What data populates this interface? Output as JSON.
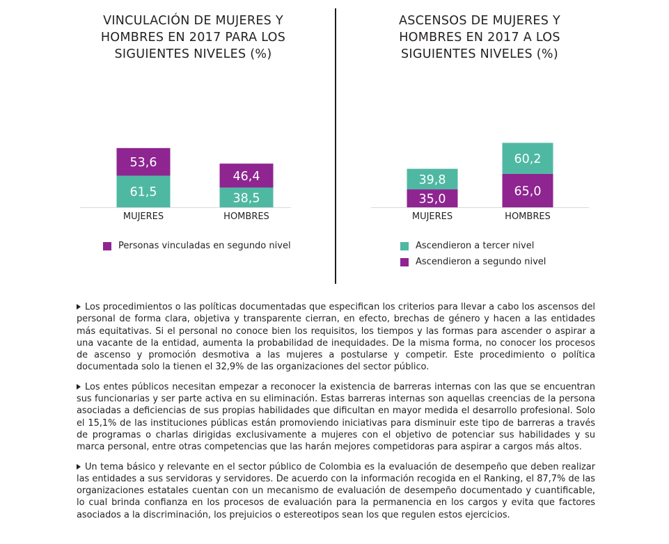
{
  "colors": {
    "magenta": "#8e2590",
    "teal": "#4fb8a2",
    "axis": "#d9d9d9"
  },
  "chart_data": [
    {
      "type": "bar",
      "stacked": true,
      "title": "VINCULACIÓN DE MUJERES Y HOMBRES EN 2017 PARA LOS SIGUIENTES NIVELES (%)",
      "categories": [
        "MUJERES",
        "HOMBRES"
      ],
      "series": [
        {
          "name": "",
          "values": [
            61.5,
            38.5
          ],
          "labels": [
            "61,5",
            "38,5"
          ],
          "color": "#4fb8a2"
        },
        {
          "name": "Personas vinculadas en segundo nivel",
          "values": [
            53.6,
            46.4
          ],
          "labels": [
            "53,6",
            "46,4"
          ],
          "color": "#8e2590"
        }
      ],
      "legend": [
        {
          "label": "Personas vinculadas en segundo nivel",
          "color": "#8e2590"
        }
      ],
      "legend_position": "bottom",
      "grid": false
    },
    {
      "type": "bar",
      "stacked": true,
      "title": "ASCENSOS DE MUJERES Y HOMBRES EN 2017 A LOS SIGUIENTES NIVELES (%)",
      "categories": [
        "MUJERES",
        "HOMBRES"
      ],
      "series": [
        {
          "name": "Ascendieron a segundo nivel",
          "values": [
            35.0,
            65.0
          ],
          "labels": [
            "35,0",
            "65,0"
          ],
          "color": "#8e2590"
        },
        {
          "name": "Ascendieron a tercer nivel",
          "values": [
            39.8,
            60.2
          ],
          "labels": [
            "39,8",
            "60,2"
          ],
          "color": "#4fb8a2"
        }
      ],
      "legend": [
        {
          "label": "Ascendieron a tercer nivel",
          "color": "#4fb8a2"
        },
        {
          "label": "Ascendieron a segundo nivel",
          "color": "#8e2590"
        }
      ],
      "legend_position": "bottom",
      "grid": false
    }
  ],
  "paragraphs": [
    "Los procedimientos o las políticas documentadas que especifican los criterios para llevar a cabo los ascensos del personal de forma clara, objetiva y transparente cierran, en efecto, brechas de género y hacen a las entidades más equitativas. Si el personal no conoce bien los requisitos, los tiempos y las formas para ascender o aspirar a una vacante de la entidad, aumenta la probabilidad de inequidades. De la misma forma, no conocer los procesos de ascenso y promoción desmotiva a las mujeres a postularse y competir. Este procedimiento o política documentada solo la tienen el 32,9% de las organizaciones del sector público.",
    "Los entes públicos necesitan empezar a reconocer la existencia de barreras internas con las que se encuentran sus funcionarias y ser parte activa en su eliminación. Estas barreras internas son aquellas creencias de la persona asociadas a deficiencias de sus propias habilidades que dificultan en mayor medida el desarrollo profesional. Solo el 15,1% de las instituciones públicas están promoviendo iniciativas para disminuir este tipo de barreras a través de programas o charlas dirigidas exclusivamente a mujeres con el objetivo de potenciar sus habilidades y su marca personal, entre otras competencias que las harán mejores competidoras para aspirar a cargos más altos.",
    "Un tema básico y relevante en el sector público de Colombia es la evaluación de desempeño que deben realizar las entidades a sus servidoras y servidores. De acuerdo con la información recogida en el Ranking, el 87,7% de las organizaciones estatales cuentan con un mecanismo de evaluación de desempeño documentado y cuantificable, lo cual brinda confianza en los procesos de evaluación para la permanencia en los cargos y evita que factores asociados a la discriminación, los prejuicios o estereotipos sean los que regulen estos ejercicios."
  ]
}
